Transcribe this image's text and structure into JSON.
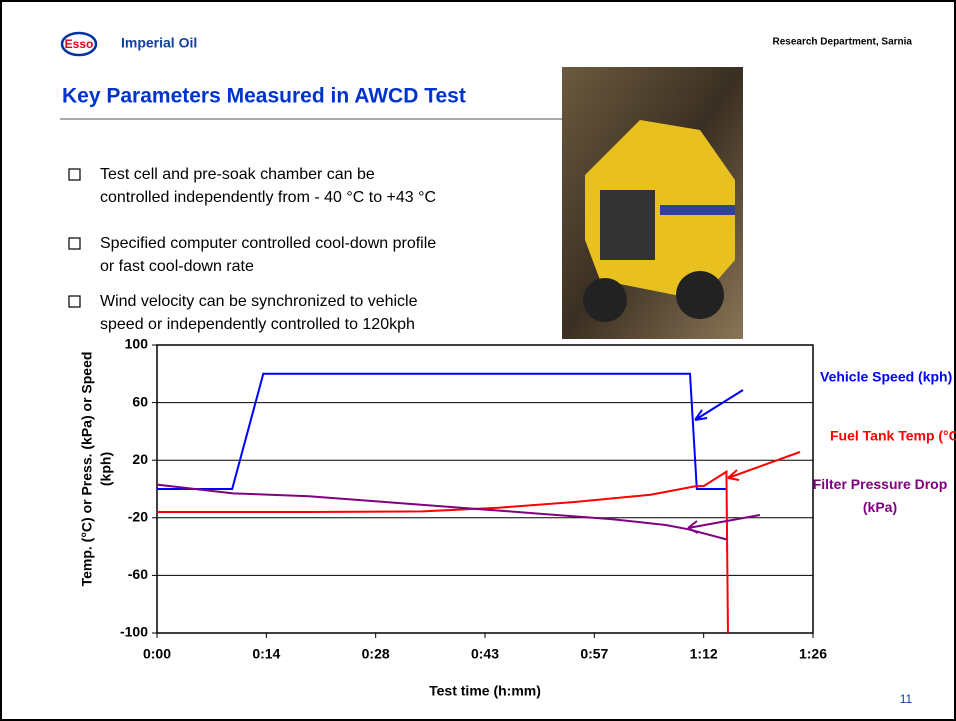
{
  "header": {
    "logo": "Esso",
    "company": "Imperial Oil",
    "department": "Research Department, Sarnia"
  },
  "title": "Key Parameters Measured in AWCD Test",
  "bullets": [
    [
      "Test cell and pre-soak chamber can be",
      "controlled independently from - 40 °C to +43 °C"
    ],
    [
      "Specified computer controlled cool-down profile",
      "or fast cool-down rate"
    ],
    [
      "Wind velocity can be synchronized to vehicle",
      "speed or independently controlled to 120kph"
    ]
  ],
  "page_number": "11",
  "chart_data": {
    "type": "line",
    "x_label": "Test time (h:mm)",
    "y_label": [
      "Temp. (°C) or Press. (kPa) or Speed",
      "(kph)"
    ],
    "xlim": [
      0,
      86.4
    ],
    "ylim": [
      -100,
      100
    ],
    "xticks": [
      {
        "value": 0,
        "label": "0:00"
      },
      {
        "value": 14.4,
        "label": "0:14"
      },
      {
        "value": 28.8,
        "label": "0:28"
      },
      {
        "value": 43.2,
        "label": "0:43"
      },
      {
        "value": 57.6,
        "label": "0:57"
      },
      {
        "value": 72,
        "label": "1:12"
      },
      {
        "value": 86.4,
        "label": "1:26"
      }
    ],
    "yticks": [
      -100,
      -60,
      -20,
      20,
      60,
      100
    ],
    "grid": true,
    "series": [
      {
        "name": "Vehicle Speed (kph)",
        "color": "#0000ff",
        "x": [
          0,
          9.9,
          14,
          70.2,
          71.1,
          75.1
        ],
        "values": [
          0,
          0,
          80,
          80,
          0,
          0
        ]
      },
      {
        "name": "Fuel Tank Temp (°C)",
        "color": "#ff0000",
        "x": [
          0,
          20,
          35,
          45,
          55,
          65,
          71,
          72,
          75,
          75.2
        ],
        "values": [
          -16,
          -16,
          -15.5,
          -13,
          -9,
          -4,
          2,
          2,
          12,
          -100
        ]
      },
      {
        "name": "Filter Pressure Drop (kPa)",
        "color": "#800080",
        "x": [
          0,
          10,
          20,
          30,
          40,
          50,
          60,
          67,
          70,
          75
        ],
        "values": [
          3,
          -3,
          -5,
          -9,
          -13,
          -17,
          -21,
          -25,
          -28,
          -35
        ]
      }
    ]
  }
}
